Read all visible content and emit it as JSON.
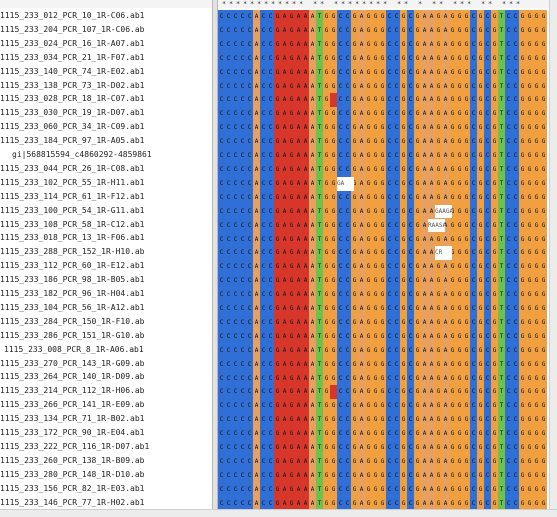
{
  "sequence_names": [
    "1115_233_012_PCR_10_1R-C06.ab1",
    "1115_233_204_PCR_107_1R-C06.ab",
    "1115_233_024_PCR_16_1R-A07.ab1",
    "1115_233_034_PCR_21_1R-F07.ab1",
    "1115_233_140_PCR_74_1R-E02.ab1",
    "1115_233_138_PCR_73_1R-D02.ab1",
    "1115_233_028_PCR_18_1R-C07.ab1",
    "1115_233_030_PCR_19_1R-D07.ab1",
    "1115_233_060_PCR_34_1R-C09.ab1",
    "1115_233_184_PCR_97_1R-A05.ab1",
    "gi|568815594_c4860292-4859861",
    "1115_233_044_PCR_26_1R-C08.ab1",
    "1115_233_102_PCR_55_1R-H11.ab1",
    "1115_233_114_PCR_61_1R-F12.ab1",
    "1115_233_100_PCR_54_1R-G11.ab1",
    "1115_233_108_PCR_58_1R-C12.ab1",
    "1115_233_018_PCR_13_1R-F06.ab1",
    "1115_233_288_PCR_152_1R-H10.ab",
    "1115_233_112_PCR_60_1R-E12.ab1",
    "1115_233_186_PCR_98_1R-B05.ab1",
    "1115_233_182_PCR_96_1R-H04.ab1",
    "1115_233_104_PCR_56_1R-A12.ab1",
    "1115_233_284_PCR_150_1R-F10.ab",
    "1115_233_286_PCR_151_1R-G10.ab",
    "1115_233_008_PCR_8_1R-A06.ab1",
    "1115_233_270_PCR_143_1R-G09.ab",
    "1115_233_264_PCR_140_1R-D09.ab",
    "1115_233_214_PCR_112_1R-H06.ab",
    "1115_233_266_PCR_141_1R-E09.ab",
    "1115_233_134_PCR_71_1R-B02.ab1",
    "1115_233_172_PCR_90_1R-E04.ab1",
    "1115_233_222_PCR_116_1R-D07.ab1",
    "1115_233_260_PCR_138_1R-B09.ab",
    "1115_233_280_PCR_148_1R-D10.ab",
    "1115_233_156_PCR_82_1R-E03.ab1",
    "1115_233_146_PCR_77_1R-H02.ab1"
  ],
  "consensus_sequence": "CCCCCACCGAGAAATGGCCGAGGGCCGCGAAGAGGGCGCGTCCGGGG",
  "conservation_marks": "************ ** ******** ** * ** *** ** ***",
  "base_colors": {
    "A": "#e8a060",
    "C": "#2f6fd6",
    "G": "#f0a040",
    "T": "#6cc24a",
    "R": "#d7372b"
  },
  "column_bases": "CCCCCACCGAGAAATGGCCGAGGGCCGCGAAGAGGGCGCGTCCGGGG",
  "variant_cells": [
    {
      "row": 6,
      "col": 16,
      "base": "R",
      "text": ""
    },
    {
      "row": 12,
      "col": 17,
      "base": "gap",
      "text": "GA"
    },
    {
      "row": 14,
      "col": 31,
      "base": "gap",
      "text": "GAAGAAX"
    },
    {
      "row": 15,
      "col": 30,
      "base": "gap",
      "text": "RAASAX"
    },
    {
      "row": 17,
      "col": 31,
      "base": "gap",
      "text": "CR"
    },
    {
      "row": 27,
      "col": 16,
      "base": "R",
      "text": ""
    }
  ]
}
